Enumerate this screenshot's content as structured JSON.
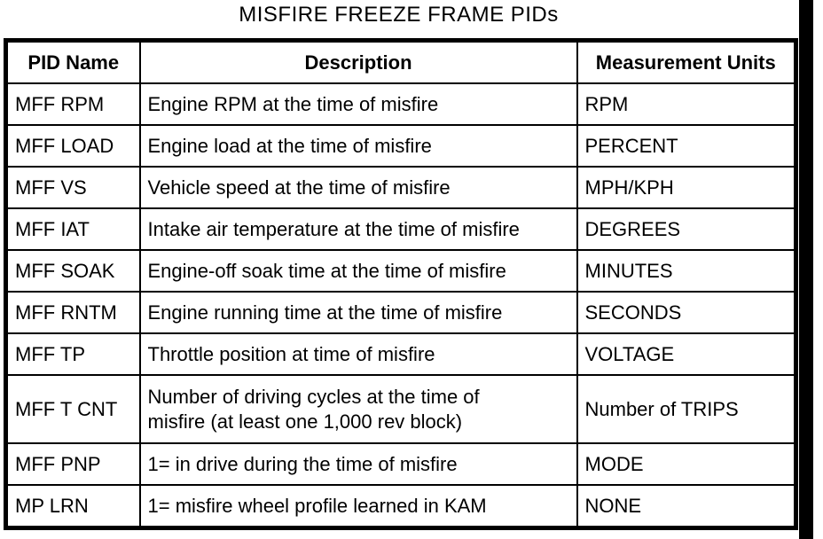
{
  "title": "MISFIRE FREEZE FRAME PIDs",
  "colors": {
    "ink": "#000000",
    "paper": "#ffffff"
  },
  "table": {
    "columns": [
      "PID Name",
      "Description",
      "Measurement Units"
    ],
    "rows": [
      {
        "pid": "MFF RPM",
        "description": "Engine RPM at the time of misfire",
        "units": "RPM"
      },
      {
        "pid": "MFF LOAD",
        "description": "Engine load at the time of misfire",
        "units": "PERCENT"
      },
      {
        "pid": "MFF VS",
        "description": "Vehicle speed at the time of misfire",
        "units": "MPH/KPH"
      },
      {
        "pid": "MFF IAT",
        "description": "Intake air temperature at the time of misfire",
        "units": "DEGREES"
      },
      {
        "pid": "MFF SOAK",
        "description": "Engine-off soak time at the time of misfire",
        "units": "MINUTES"
      },
      {
        "pid": "MFF RNTM",
        "description": "Engine running time at the time of misfire",
        "units": "SECONDS"
      },
      {
        "pid": "MFF TP",
        "description": "Throttle position at time of misfire",
        "units": "VOLTAGE"
      },
      {
        "pid": "MFF T CNT",
        "description": [
          "Number of driving cycles at the time of",
          "misfire (at least one 1,000 rev block)"
        ],
        "units": "Number of TRIPS"
      },
      {
        "pid": "MFF PNP",
        "description": "1= in drive during the time of misfire",
        "units": "MODE"
      },
      {
        "pid": "MP LRN",
        "description": "1= misfire wheel profile learned in KAM",
        "units": "NONE"
      }
    ]
  }
}
